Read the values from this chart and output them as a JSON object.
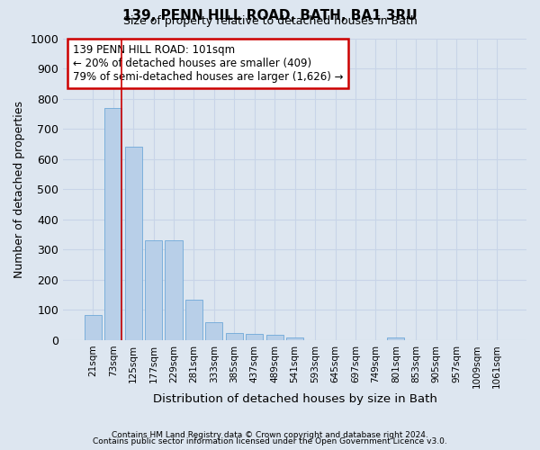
{
  "title": "139, PENN HILL ROAD, BATH, BA1 3RU",
  "subtitle": "Size of property relative to detached houses in Bath",
  "xlabel": "Distribution of detached houses by size in Bath",
  "ylabel": "Number of detached properties",
  "footer1": "Contains HM Land Registry data © Crown copyright and database right 2024.",
  "footer2": "Contains public sector information licensed under the Open Government Licence v3.0.",
  "bar_labels": [
    "21sqm",
    "73sqm",
    "125sqm",
    "177sqm",
    "229sqm",
    "281sqm",
    "333sqm",
    "385sqm",
    "437sqm",
    "489sqm",
    "541sqm",
    "593sqm",
    "645sqm",
    "697sqm",
    "749sqm",
    "801sqm",
    "853sqm",
    "905sqm",
    "957sqm",
    "1009sqm",
    "1061sqm"
  ],
  "bar_values": [
    83,
    770,
    640,
    330,
    330,
    135,
    60,
    25,
    22,
    17,
    10,
    0,
    0,
    0,
    0,
    10,
    0,
    0,
    0,
    0,
    0
  ],
  "bar_color": "#b8cfe8",
  "bar_edge_color": "#6fa8d8",
  "vline_x": 1.42,
  "vline_color": "#cc0000",
  "annotation_text": "139 PENN HILL ROAD: 101sqm\n← 20% of detached houses are smaller (409)\n79% of semi-detached houses are larger (1,626) →",
  "annotation_box_color": "white",
  "annotation_box_edge": "#cc0000",
  "ylim": [
    0,
    1000
  ],
  "yticks": [
    0,
    100,
    200,
    300,
    400,
    500,
    600,
    700,
    800,
    900,
    1000
  ],
  "grid_color": "#c8d4e8",
  "background_color": "#dde6f0",
  "plot_bg_color": "#dde6f0"
}
